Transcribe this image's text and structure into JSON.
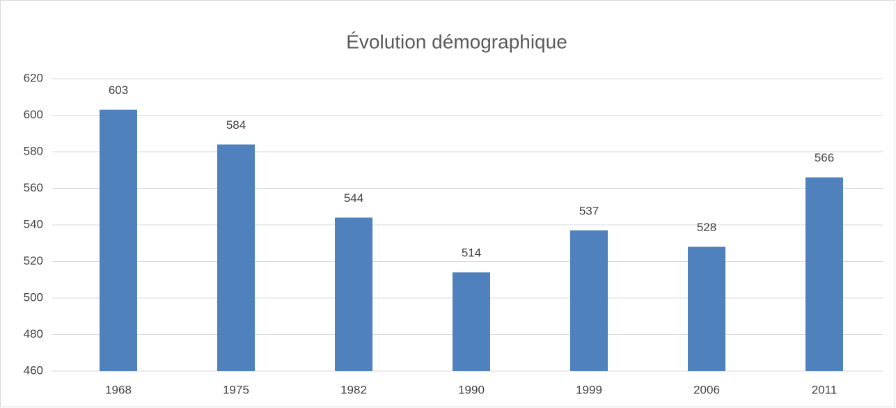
{
  "chart_data": {
    "type": "bar",
    "title": "Évolution démographique",
    "categories": [
      "1968",
      "1975",
      "1982",
      "1990",
      "1999",
      "2006",
      "2011"
    ],
    "values": [
      603,
      584,
      544,
      514,
      537,
      528,
      566
    ],
    "color": "#4f81bd",
    "ylim": [
      460,
      620
    ],
    "yticks": [
      460,
      480,
      500,
      520,
      540,
      560,
      580,
      600,
      620
    ],
    "grid": true
  }
}
